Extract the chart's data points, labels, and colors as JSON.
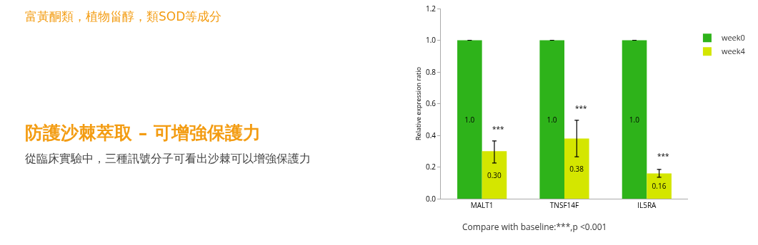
{
  "chart_data": {
    "type": "bar",
    "title": "防護沙棘萃取 – 可增強保護力",
    "subtitle": "從臨床實驗中，三種訊號分子可看出沙棘可以增強保護力",
    "ylabel": "Relative expression ratio",
    "categories": [
      "MALT1",
      "TNSF14F",
      "IL5RA"
    ],
    "series": [
      {
        "name": "week0",
        "color": "#2eb31a",
        "values": [
          1.0,
          1.0,
          1.0
        ],
        "errors": [
          0,
          0,
          0
        ],
        "value_labels": [
          "1.0",
          "1.0",
          "1.0"
        ]
      },
      {
        "name": "week4",
        "color": "#d4e600",
        "values": [
          0.3,
          0.38,
          0.16
        ],
        "errors": [
          [
            0.225,
            0.365
          ],
          [
            0.265,
            0.495
          ],
          [
            0.135,
            0.185
          ]
        ],
        "value_labels": [
          "0.30",
          "0.38",
          "0.16"
        ]
      }
    ],
    "annotations": [
      "富黃酮類，植物甾醇，類SOD等成分",
      {
        "text": "***",
        "x": "MALT1",
        "y": 0.44
      },
      {
        "text": "***",
        "x": "TNSF14F",
        "y": 0.57
      },
      {
        "text": "***",
        "x": "IL5RA",
        "y": 0.27
      },
      "Compare with baseline:***,p <0.001"
    ],
    "ylim": [
      0,
      1.2
    ],
    "yticks": [
      {
        "value": 0,
        "label": "0.0"
      },
      0.2,
      0.4,
      0.6,
      0.8,
      {
        "value": 1,
        "label": "1.0"
      },
      {
        "value": 1.2,
        "label": "1.2"
      }
    ],
    "grid": false,
    "legend": "right"
  }
}
